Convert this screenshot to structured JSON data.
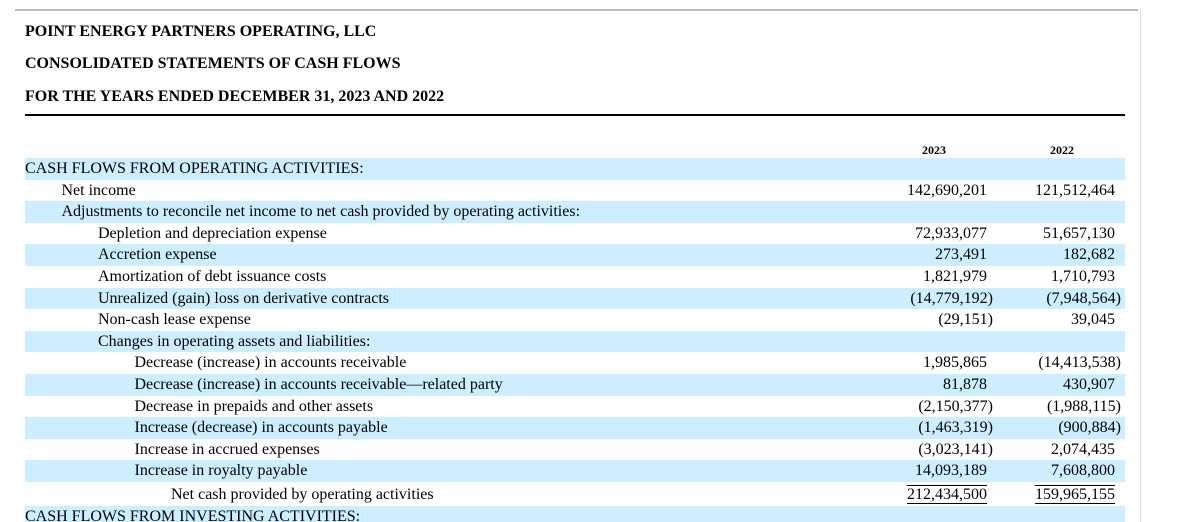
{
  "header": {
    "company": "POINT ENERGY PARTNERS OPERATING, LLC",
    "statement": "CONSOLIDATED STATEMENTS OF CASH FLOWS",
    "period": "FOR THE YEARS ENDED DECEMBER 31, 2023 AND 2022"
  },
  "table": {
    "columns": [
      "2023",
      "2022"
    ],
    "rows": [
      {
        "label": "CASH FLOWS FROM OPERATING ACTIVITIES:",
        "indent": 0
      },
      {
        "label": "Net income",
        "indent": 1,
        "currency": "$",
        "values": [
          "142,690,201",
          "121,512,464"
        ]
      },
      {
        "label": "Adjustments to reconcile net income to net cash provided by operating activities:",
        "indent": 1
      },
      {
        "label": "Depletion and depreciation expense",
        "indent": 2,
        "values": [
          "72,933,077",
          "51,657,130"
        ]
      },
      {
        "label": "Accretion expense",
        "indent": 2,
        "values": [
          "273,491",
          "182,682"
        ]
      },
      {
        "label": "Amortization of debt issuance costs",
        "indent": 2,
        "values": [
          "1,821,979",
          "1,710,793"
        ]
      },
      {
        "label": "Unrealized (gain) loss on derivative contracts",
        "indent": 2,
        "values": [
          "(14,779,192)",
          "(7,948,564)"
        ]
      },
      {
        "label": "Non-cash lease expense",
        "indent": 2,
        "values": [
          "(29,151)",
          "39,045"
        ]
      },
      {
        "label": "Changes in operating assets and liabilities:",
        "indent": 2
      },
      {
        "label": "Decrease (increase) in accounts receivable",
        "indent": 3,
        "values": [
          "1,985,865",
          "(14,413,538)"
        ]
      },
      {
        "label": "Decrease (increase) in accounts receivable—related party",
        "indent": 3,
        "values": [
          "81,878",
          "430,907"
        ]
      },
      {
        "label": "Decrease in prepaids and other assets",
        "indent": 3,
        "values": [
          "(2,150,377)",
          "(1,988,115)"
        ]
      },
      {
        "label": "Increase (decrease) in accounts payable",
        "indent": 3,
        "values": [
          "(1,463,319)",
          "(900,884)"
        ]
      },
      {
        "label": "Increase in accrued expenses",
        "indent": 3,
        "values": [
          "(3,023,141)",
          "2,074,435"
        ]
      },
      {
        "label": "Increase in royalty payable",
        "indent": 3,
        "values": [
          "14,093,189",
          "7,608,800"
        ]
      },
      {
        "label": "Net cash provided by operating activities",
        "indent": 4,
        "values": [
          "212,434,500",
          "159,965,155"
        ],
        "total": true
      },
      {
        "label": "CASH FLOWS FROM INVESTING ACTIVITIES:",
        "indent": 0
      }
    ]
  }
}
